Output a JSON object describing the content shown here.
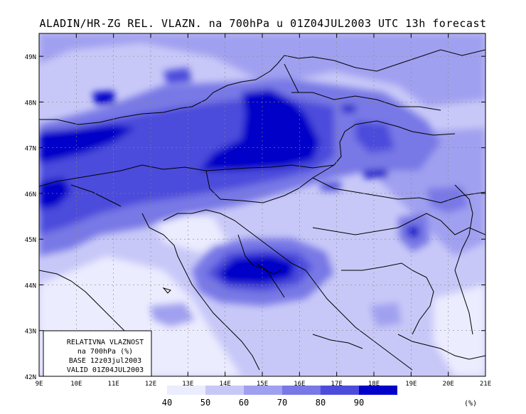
{
  "title": "ALADIN/HR-ZG REL. VLAZN. na 700hPa u 01Z04JUL2003 UTC 13h forecast",
  "map": {
    "lon_labels": [
      "9E",
      "10E",
      "11E",
      "12E",
      "13E",
      "14E",
      "15E",
      "16E",
      "17E",
      "18E",
      "19E",
      "20E",
      "21E"
    ],
    "lat_labels": [
      "49N",
      "48N",
      "47N",
      "46N",
      "45N",
      "44N",
      "43N",
      "42N"
    ],
    "extent": {
      "lon": [
        9,
        21
      ],
      "lat": [
        42,
        49.5
      ]
    },
    "grid": true
  },
  "info_box": {
    "line1": "RELATIVNA VLAZNOST",
    "line2": "na 700hPa (%)",
    "line3": "BASE 12z03jul2003",
    "line4": "VALID 01Z04JUL2003"
  },
  "colorbar": {
    "labels": [
      "40",
      "50",
      "60",
      "70",
      "80",
      "90"
    ],
    "unit": "(%)",
    "colors": [
      "#ececff",
      "#c8c8f8",
      "#a0a0f0",
      "#7878e6",
      "#4c4cdc",
      "#0000c8"
    ]
  },
  "chart_data": {
    "type": "heatmap",
    "title": "ALADIN/HR-ZG REL. VLAZN. na 700hPa u 01Z04JUL2003 UTC 13h forecast",
    "variable": "relative humidity at 700hPa",
    "unit": "%",
    "levels": [
      40,
      50,
      60,
      70,
      80,
      90
    ],
    "x_range": [
      9,
      21
    ],
    "y_range": [
      42,
      49.5
    ],
    "xlabel": "",
    "ylabel": ""
  }
}
